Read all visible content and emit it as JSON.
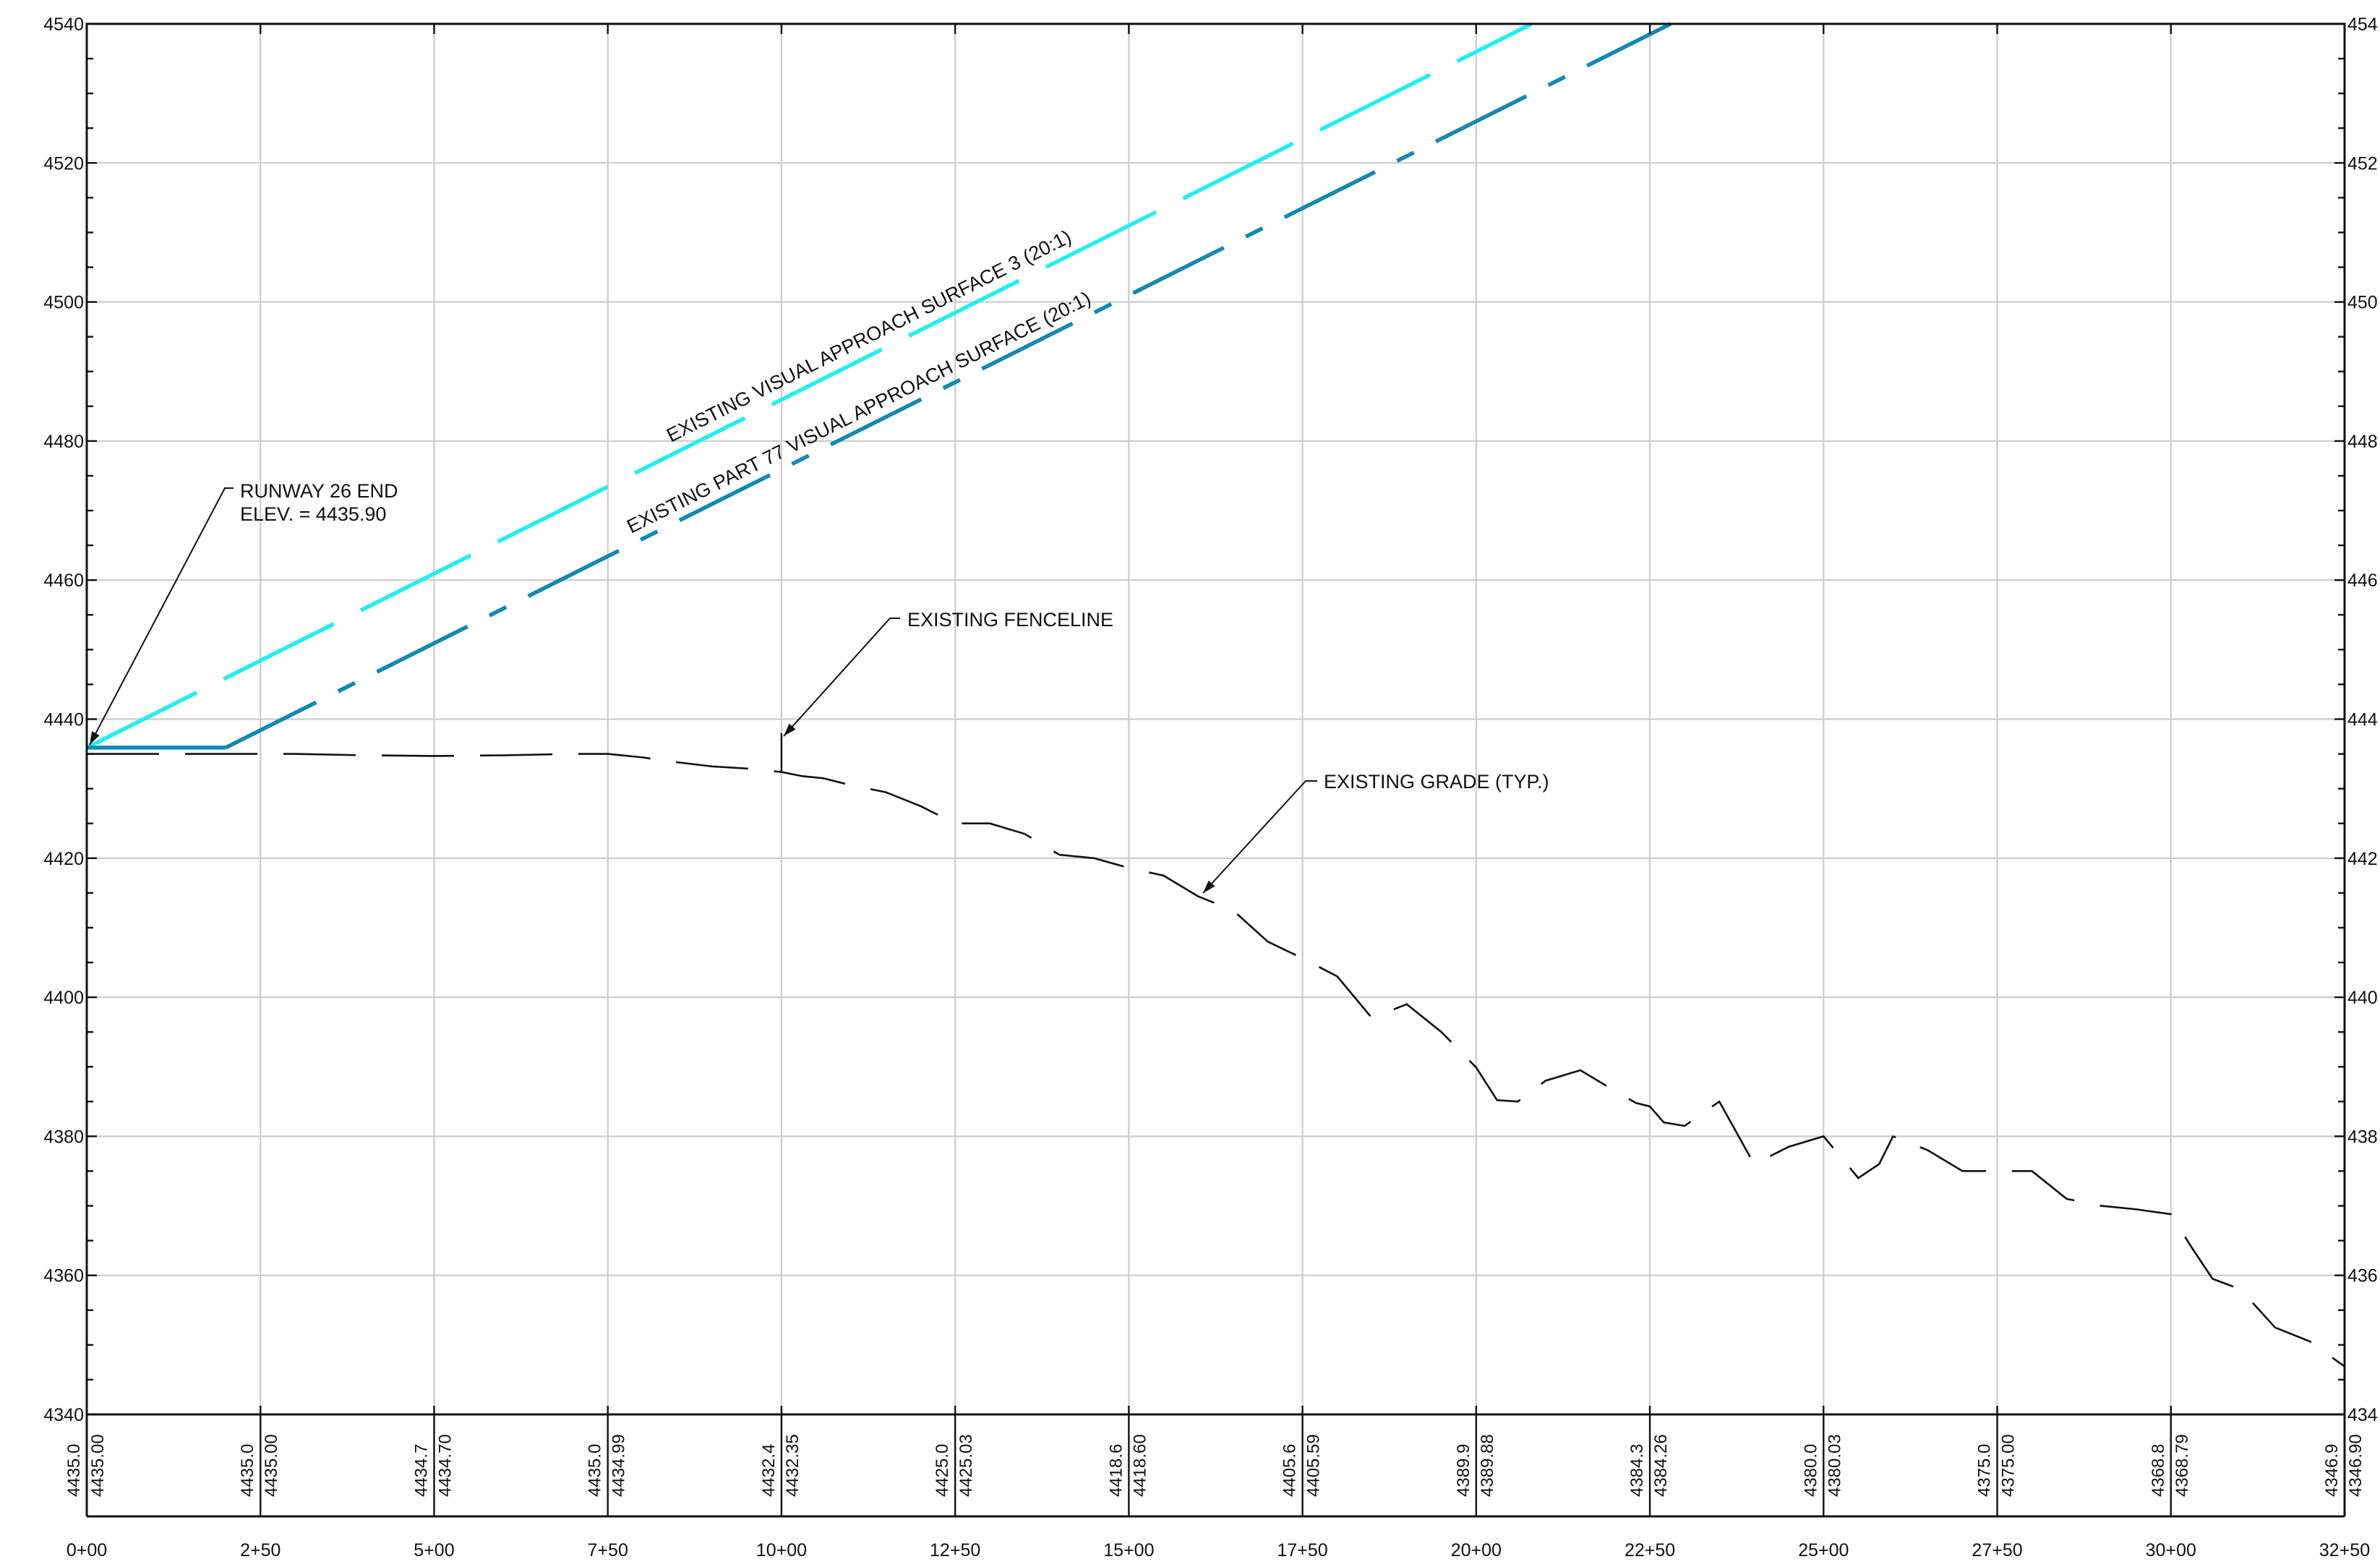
{
  "chart_data": {
    "type": "line",
    "xlim": [
      0,
      3250
    ],
    "ylim": [
      4340,
      4540
    ],
    "grid": true,
    "y_ticks": [
      4340,
      4360,
      4380,
      4400,
      4420,
      4440,
      4460,
      4480,
      4500,
      4520,
      4540
    ],
    "y_tick_labels": [
      "4340",
      "4360",
      "4380",
      "4400",
      "4420",
      "4440",
      "4460",
      "4480",
      "4500",
      "4520",
      "4540"
    ],
    "y_tick_labels_right": [
      "434",
      "436",
      "438",
      "440",
      "442",
      "444",
      "446",
      "448",
      "450",
      "452",
      "454"
    ],
    "x_ticks": [
      0,
      250,
      500,
      750,
      1000,
      1250,
      1500,
      1750,
      2000,
      2250,
      2500,
      2750,
      3000,
      3250
    ],
    "x_tick_labels": [
      "0+00",
      "2+50",
      "5+00",
      "7+50",
      "10+00",
      "12+50",
      "15+00",
      "17+50",
      "20+00",
      "22+50",
      "25+00",
      "27+50",
      "30+00",
      "32+50"
    ],
    "station_elevations": [
      {
        "station": 0,
        "existing": "4435.0",
        "design": "4435.00"
      },
      {
        "station": 250,
        "existing": "4435.0",
        "design": "4435.00"
      },
      {
        "station": 500,
        "existing": "4434.7",
        "design": "4434.70"
      },
      {
        "station": 750,
        "existing": "4435.0",
        "design": "4434.99"
      },
      {
        "station": 1000,
        "existing": "4432.4",
        "design": "4432.35"
      },
      {
        "station": 1250,
        "existing": "4425.0",
        "design": "4425.03"
      },
      {
        "station": 1500,
        "existing": "4418.6",
        "design": "4418.60"
      },
      {
        "station": 1750,
        "existing": "4405.6",
        "design": "4405.59"
      },
      {
        "station": 2000,
        "existing": "4389.9",
        "design": "4389.88"
      },
      {
        "station": 2250,
        "existing": "4384.3",
        "design": "4384.26"
      },
      {
        "station": 2500,
        "existing": "4380.0",
        "design": "4380.03"
      },
      {
        "station": 2750,
        "existing": "4375.0",
        "design": "4375.00"
      },
      {
        "station": 3000,
        "existing": "4368.8",
        "design": "4368.79"
      },
      {
        "station": 3250,
        "existing": "4346.9",
        "design": "4346.90"
      }
    ],
    "series": [
      {
        "name": "EXISTING VISUAL APPROACH SURFACE 3 (20:1)",
        "color": "#22eef2",
        "style": "long-dash",
        "x": [
          0,
          2080
        ],
        "y": [
          4435.9,
          4540
        ]
      },
      {
        "name": "EXISTING PART 77 VISUAL APPROACH SURFACE (20:1)",
        "color": "#1288b4",
        "style": "solid-then-dash-dot",
        "x": [
          0,
          200,
          2280
        ],
        "y": [
          4435.9,
          4435.9,
          4540
        ]
      },
      {
        "name": "EXISTING GRADE (TYP.)",
        "color": "#111111",
        "style": "dashed",
        "x": [
          0,
          100,
          200,
          300,
          400,
          500,
          600,
          700,
          750,
          800,
          850,
          900,
          950,
          1000,
          1030,
          1060,
          1100,
          1150,
          1200,
          1250,
          1300,
          1350,
          1400,
          1450,
          1500,
          1550,
          1600,
          1650,
          1700,
          1750,
          1800,
          1850,
          1900,
          1950,
          2000,
          2030,
          2060,
          2100,
          2150,
          2200,
          2230,
          2250,
          2270,
          2300,
          2350,
          2400,
          2450,
          2500,
          2550,
          2580,
          2600,
          2650,
          2700,
          2750,
          2800,
          2850,
          2900,
          2950,
          3000,
          3030,
          3060,
          3100,
          3150,
          3200,
          3250
        ],
        "y": [
          4435.0,
          4435.0,
          4435.0,
          4435.0,
          4434.8,
          4434.7,
          4434.8,
          4435.0,
          4435.0,
          4434.5,
          4433.8,
          4433.2,
          4432.9,
          4432.4,
          4431.8,
          4431.5,
          4430.5,
          4429.5,
          4427.5,
          4425.0,
          4425.0,
          4423.5,
          4420.5,
          4420.0,
          4418.6,
          4417.5,
          4414.5,
          4412.5,
          4408.0,
          4405.6,
          4403.0,
          4397.0,
          4399.0,
          4395.0,
          4389.9,
          4385.2,
          4385.0,
          4388.0,
          4389.5,
          4386.5,
          4384.8,
          4384.3,
          4382.0,
          4381.5,
          4385.0,
          4376.0,
          4378.5,
          4380.0,
          4374.0,
          4376.0,
          4380.0,
          4378.0,
          4375.0,
          4375.0,
          4375.0,
          4371.0,
          4370.0,
          4369.5,
          4368.8,
          4364.0,
          4359.5,
          4358.0,
          4352.5,
          4350.5,
          4346.9
        ]
      }
    ],
    "annotations": [
      {
        "id": "runway",
        "lines": [
          "RUNWAY 26 END",
          "ELEV. = 4435.90"
        ]
      },
      {
        "id": "fence",
        "lines": [
          "EXISTING FENCELINE"
        ]
      },
      {
        "id": "grade",
        "lines": [
          "EXISTING GRADE (TYP.)"
        ]
      },
      {
        "id": "vas3",
        "lines": [
          "EXISTING VISUAL APPROACH SURFACE 3 (20:1)"
        ]
      },
      {
        "id": "part77",
        "lines": [
          "EXISTING PART 77 VISUAL APPROACH SURFACE (20:1)"
        ]
      }
    ]
  }
}
